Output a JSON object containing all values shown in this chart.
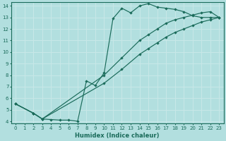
{
  "xlabel": "Humidex (Indice chaleur)",
  "xlim": [
    -0.5,
    23.5
  ],
  "ylim": [
    3.8,
    14.3
  ],
  "xticks": [
    0,
    1,
    2,
    3,
    4,
    5,
    6,
    7,
    8,
    9,
    10,
    11,
    12,
    13,
    14,
    15,
    16,
    17,
    18,
    19,
    20,
    21,
    22,
    23
  ],
  "yticks": [
    4,
    5,
    6,
    7,
    8,
    9,
    10,
    11,
    12,
    13,
    14
  ],
  "bg_color": "#b2dfdf",
  "line_color": "#1a6b5a",
  "grid_color": "#c8e8e8",
  "line1_x": [
    0,
    2,
    3,
    4,
    5,
    6,
    7,
    8,
    9,
    10,
    11,
    12,
    13,
    14,
    15,
    16,
    17,
    18,
    19,
    20,
    21,
    22,
    23
  ],
  "line1_y": [
    5.5,
    4.7,
    4.2,
    4.15,
    4.1,
    4.1,
    4.0,
    7.5,
    7.1,
    8.2,
    12.9,
    13.8,
    13.4,
    14.0,
    14.2,
    13.9,
    13.8,
    13.7,
    13.5,
    13.15,
    13.0,
    13.0,
    13.0
  ],
  "line2_x": [
    0,
    2,
    3,
    10,
    12,
    14,
    15,
    16,
    17,
    18,
    19,
    20,
    21,
    22,
    23
  ],
  "line2_y": [
    5.5,
    4.7,
    4.2,
    8.0,
    9.5,
    11.0,
    11.5,
    12.0,
    12.5,
    12.8,
    13.0,
    13.2,
    13.4,
    13.5,
    13.0
  ],
  "line3_x": [
    0,
    2,
    3,
    10,
    12,
    14,
    15,
    16,
    17,
    18,
    19,
    20,
    21,
    22,
    23
  ],
  "line3_y": [
    5.5,
    4.7,
    4.2,
    7.3,
    8.5,
    9.8,
    10.3,
    10.8,
    11.3,
    11.7,
    12.0,
    12.3,
    12.6,
    12.8,
    13.0
  ]
}
